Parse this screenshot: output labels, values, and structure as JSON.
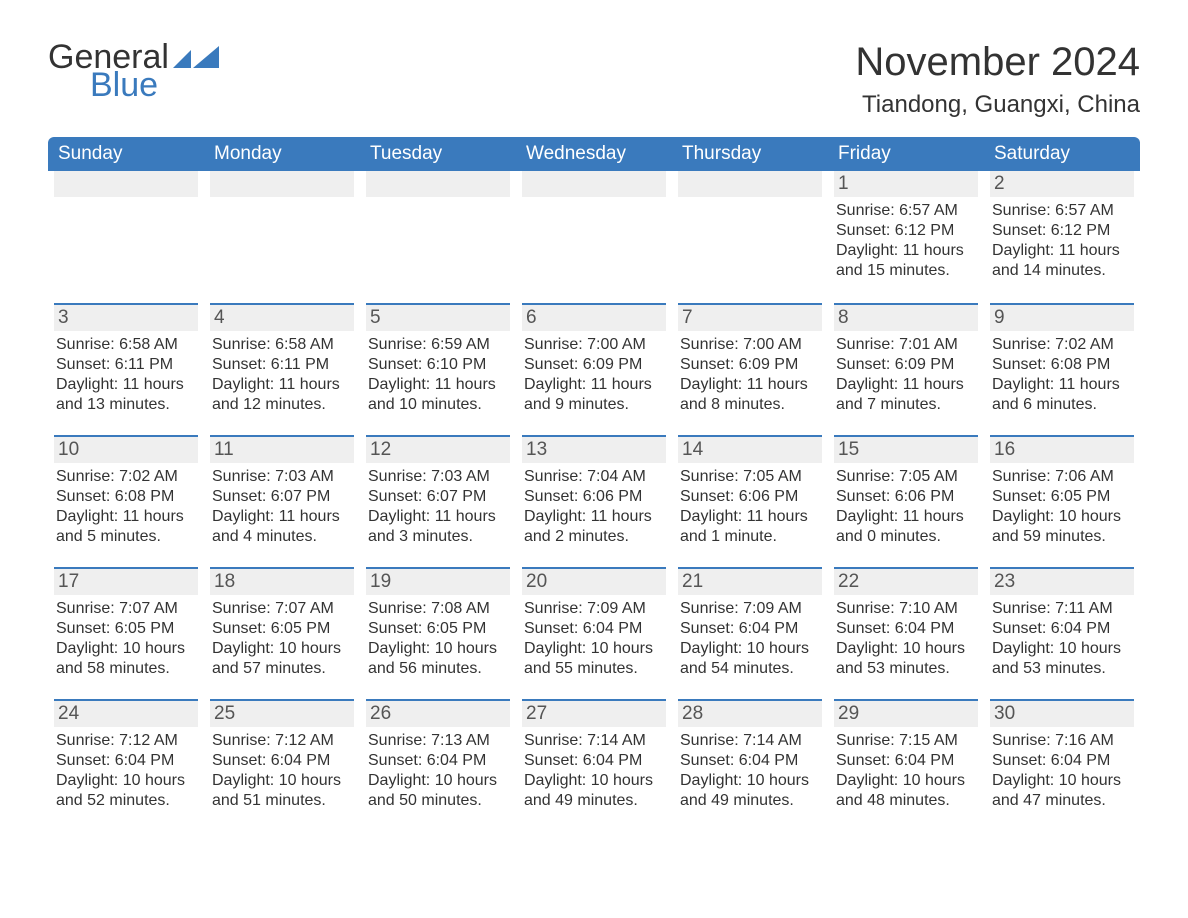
{
  "logo": {
    "text1": "General",
    "text2": "Blue",
    "accent_color": "#3a7abd"
  },
  "title": "November 2024",
  "location": "Tiandong, Guangxi, China",
  "header_bg": "#3a7abd",
  "daynum_bg": "#efefef",
  "text_color": "#333333",
  "columns": [
    "Sunday",
    "Monday",
    "Tuesday",
    "Wednesday",
    "Thursday",
    "Friday",
    "Saturday"
  ],
  "font_family": "Arial",
  "title_fontsize": 40,
  "location_fontsize": 24,
  "header_fontsize": 19,
  "body_fontsize": 16,
  "weeks": [
    [
      {
        "day": "",
        "lines": []
      },
      {
        "day": "",
        "lines": []
      },
      {
        "day": "",
        "lines": []
      },
      {
        "day": "",
        "lines": []
      },
      {
        "day": "",
        "lines": []
      },
      {
        "day": "1",
        "lines": [
          "Sunrise: 6:57 AM",
          "Sunset: 6:12 PM",
          "Daylight: 11 hours and 15 minutes."
        ]
      },
      {
        "day": "2",
        "lines": [
          "Sunrise: 6:57 AM",
          "Sunset: 6:12 PM",
          "Daylight: 11 hours and 14 minutes."
        ]
      }
    ],
    [
      {
        "day": "3",
        "lines": [
          "Sunrise: 6:58 AM",
          "Sunset: 6:11 PM",
          "Daylight: 11 hours and 13 minutes."
        ]
      },
      {
        "day": "4",
        "lines": [
          "Sunrise: 6:58 AM",
          "Sunset: 6:11 PM",
          "Daylight: 11 hours and 12 minutes."
        ]
      },
      {
        "day": "5",
        "lines": [
          "Sunrise: 6:59 AM",
          "Sunset: 6:10 PM",
          "Daylight: 11 hours and 10 minutes."
        ]
      },
      {
        "day": "6",
        "lines": [
          "Sunrise: 7:00 AM",
          "Sunset: 6:09 PM",
          "Daylight: 11 hours and 9 minutes."
        ]
      },
      {
        "day": "7",
        "lines": [
          "Sunrise: 7:00 AM",
          "Sunset: 6:09 PM",
          "Daylight: 11 hours and 8 minutes."
        ]
      },
      {
        "day": "8",
        "lines": [
          "Sunrise: 7:01 AM",
          "Sunset: 6:09 PM",
          "Daylight: 11 hours and 7 minutes."
        ]
      },
      {
        "day": "9",
        "lines": [
          "Sunrise: 7:02 AM",
          "Sunset: 6:08 PM",
          "Daylight: 11 hours and 6 minutes."
        ]
      }
    ],
    [
      {
        "day": "10",
        "lines": [
          "Sunrise: 7:02 AM",
          "Sunset: 6:08 PM",
          "Daylight: 11 hours and 5 minutes."
        ]
      },
      {
        "day": "11",
        "lines": [
          "Sunrise: 7:03 AM",
          "Sunset: 6:07 PM",
          "Daylight: 11 hours and 4 minutes."
        ]
      },
      {
        "day": "12",
        "lines": [
          "Sunrise: 7:03 AM",
          "Sunset: 6:07 PM",
          "Daylight: 11 hours and 3 minutes."
        ]
      },
      {
        "day": "13",
        "lines": [
          "Sunrise: 7:04 AM",
          "Sunset: 6:06 PM",
          "Daylight: 11 hours and 2 minutes."
        ]
      },
      {
        "day": "14",
        "lines": [
          "Sunrise: 7:05 AM",
          "Sunset: 6:06 PM",
          "Daylight: 11 hours and 1 minute."
        ]
      },
      {
        "day": "15",
        "lines": [
          "Sunrise: 7:05 AM",
          "Sunset: 6:06 PM",
          "Daylight: 11 hours and 0 minutes."
        ]
      },
      {
        "day": "16",
        "lines": [
          "Sunrise: 7:06 AM",
          "Sunset: 6:05 PM",
          "Daylight: 10 hours and 59 minutes."
        ]
      }
    ],
    [
      {
        "day": "17",
        "lines": [
          "Sunrise: 7:07 AM",
          "Sunset: 6:05 PM",
          "Daylight: 10 hours and 58 minutes."
        ]
      },
      {
        "day": "18",
        "lines": [
          "Sunrise: 7:07 AM",
          "Sunset: 6:05 PM",
          "Daylight: 10 hours and 57 minutes."
        ]
      },
      {
        "day": "19",
        "lines": [
          "Sunrise: 7:08 AM",
          "Sunset: 6:05 PM",
          "Daylight: 10 hours and 56 minutes."
        ]
      },
      {
        "day": "20",
        "lines": [
          "Sunrise: 7:09 AM",
          "Sunset: 6:04 PM",
          "Daylight: 10 hours and 55 minutes."
        ]
      },
      {
        "day": "21",
        "lines": [
          "Sunrise: 7:09 AM",
          "Sunset: 6:04 PM",
          "Daylight: 10 hours and 54 minutes."
        ]
      },
      {
        "day": "22",
        "lines": [
          "Sunrise: 7:10 AM",
          "Sunset: 6:04 PM",
          "Daylight: 10 hours and 53 minutes."
        ]
      },
      {
        "day": "23",
        "lines": [
          "Sunrise: 7:11 AM",
          "Sunset: 6:04 PM",
          "Daylight: 10 hours and 53 minutes."
        ]
      }
    ],
    [
      {
        "day": "24",
        "lines": [
          "Sunrise: 7:12 AM",
          "Sunset: 6:04 PM",
          "Daylight: 10 hours and 52 minutes."
        ]
      },
      {
        "day": "25",
        "lines": [
          "Sunrise: 7:12 AM",
          "Sunset: 6:04 PM",
          "Daylight: 10 hours and 51 minutes."
        ]
      },
      {
        "day": "26",
        "lines": [
          "Sunrise: 7:13 AM",
          "Sunset: 6:04 PM",
          "Daylight: 10 hours and 50 minutes."
        ]
      },
      {
        "day": "27",
        "lines": [
          "Sunrise: 7:14 AM",
          "Sunset: 6:04 PM",
          "Daylight: 10 hours and 49 minutes."
        ]
      },
      {
        "day": "28",
        "lines": [
          "Sunrise: 7:14 AM",
          "Sunset: 6:04 PM",
          "Daylight: 10 hours and 49 minutes."
        ]
      },
      {
        "day": "29",
        "lines": [
          "Sunrise: 7:15 AM",
          "Sunset: 6:04 PM",
          "Daylight: 10 hours and 48 minutes."
        ]
      },
      {
        "day": "30",
        "lines": [
          "Sunrise: 7:16 AM",
          "Sunset: 6:04 PM",
          "Daylight: 10 hours and 47 minutes."
        ]
      }
    ]
  ]
}
